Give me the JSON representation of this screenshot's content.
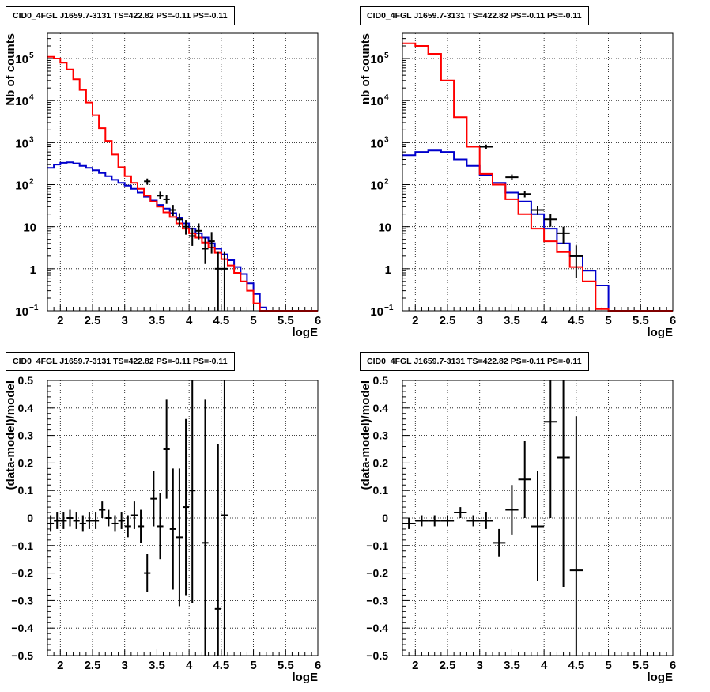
{
  "chart_data": [
    {
      "type": "step-line-with-errorbars",
      "title": "CID0_4FGL J1659.7-3131 TS=422.82 PS=-0.11 PS=-0.11",
      "xlabel": "logE",
      "ylabel": "Nb of counts",
      "xlim": [
        1.8,
        6
      ],
      "ylim": [
        0.1,
        400000
      ],
      "yscale": "log",
      "grid": true,
      "xticks": [
        "2",
        "2.5",
        "3",
        "3.5",
        "4",
        "4.5",
        "5",
        "5.5",
        "6"
      ],
      "yticks": [
        {
          "value": 0.1,
          "base": "10",
          "exp": "−1"
        },
        {
          "value": 1,
          "base": "1",
          "exp": ""
        },
        {
          "value": 10,
          "base": "10",
          "exp": ""
        },
        {
          "value": 100,
          "base": "10",
          "exp": "2"
        },
        {
          "value": 1000,
          "base": "10",
          "exp": "3"
        },
        {
          "value": 10000,
          "base": "10",
          "exp": "4"
        },
        {
          "value": 100000,
          "base": "10",
          "exp": "5"
        }
      ],
      "bin_width": 0.1,
      "bin_start": 1.8,
      "series": [
        {
          "color": "#0000cc",
          "values": [
            250,
            300,
            330,
            340,
            320,
            280,
            250,
            220,
            190,
            160,
            130,
            110,
            95,
            80,
            65,
            52,
            42,
            33,
            27,
            21,
            16,
            12,
            9,
            7,
            5.5,
            4,
            3,
            2.2,
            1.6,
            1.1,
            0.75,
            0.45,
            0.25,
            0.12,
            0.1,
            0.1,
            0.1,
            0.1,
            0.1,
            0.1,
            0.1,
            0.1
          ]
        },
        {
          "color": "#ff0000",
          "values": [
            110000,
            100000,
            80000,
            55000,
            32000,
            18000,
            9000,
            4500,
            2200,
            1100,
            520,
            260,
            160,
            110,
            80,
            55,
            40,
            30,
            22,
            17,
            12,
            9,
            7,
            5.5,
            4.2,
            3.2,
            2.4,
            1.7,
            1.2,
            0.8,
            0.5,
            0.3,
            0.15,
            0.1,
            0.1,
            0.1,
            0.1,
            0.1,
            0.1,
            0.1,
            0.1,
            0.1
          ]
        }
      ],
      "points": [
        {
          "x": 3.35,
          "y": 120,
          "lo": 100,
          "hi": 140
        },
        {
          "x": 3.55,
          "y": 55,
          "lo": 45,
          "hi": 68
        },
        {
          "x": 3.65,
          "y": 45,
          "lo": 35,
          "hi": 57
        },
        {
          "x": 3.75,
          "y": 25,
          "lo": 18,
          "hi": 33
        },
        {
          "x": 3.85,
          "y": 15,
          "lo": 10,
          "hi": 21
        },
        {
          "x": 3.95,
          "y": 10,
          "lo": 6.5,
          "hi": 14.5
        },
        {
          "x": 4.05,
          "y": 6,
          "lo": 3.5,
          "hi": 9.5
        },
        {
          "x": 4.15,
          "y": 8,
          "lo": 5,
          "hi": 12
        },
        {
          "x": 4.25,
          "y": 3,
          "lo": 1.3,
          "hi": 5.5
        },
        {
          "x": 4.35,
          "y": 4.5,
          "lo": 2.3,
          "hi": 7.5
        },
        {
          "x": 4.45,
          "y": 1,
          "lo": 0.1,
          "hi": 2.5
        },
        {
          "x": 4.55,
          "y": 1,
          "lo": 0.1,
          "hi": 2.5
        }
      ]
    },
    {
      "type": "step-line-with-errorbars",
      "title": "CID0_4FGL J1659.7-3131 TS=422.82 PS=-0.11 PS=-0.11",
      "xlabel": "logE",
      "ylabel": "nb of counts",
      "xlim": [
        1.8,
        6
      ],
      "ylim": [
        0.1,
        400000
      ],
      "yscale": "log",
      "grid": true,
      "xticks": [
        "2",
        "2.5",
        "3",
        "3.5",
        "4",
        "4.5",
        "5",
        "5.5",
        "6"
      ],
      "yticks": [
        {
          "value": 0.1,
          "base": "10",
          "exp": "−1"
        },
        {
          "value": 1,
          "base": "1",
          "exp": ""
        },
        {
          "value": 10,
          "base": "10",
          "exp": ""
        },
        {
          "value": 100,
          "base": "10",
          "exp": "2"
        },
        {
          "value": 1000,
          "base": "10",
          "exp": "3"
        },
        {
          "value": 10000,
          "base": "10",
          "exp": "4"
        },
        {
          "value": 100000,
          "base": "10",
          "exp": "5"
        }
      ],
      "bin_width": 0.2,
      "bin_start": 1.8,
      "series": [
        {
          "color": "#0000cc",
          "values": [
            500,
            600,
            650,
            600,
            400,
            280,
            170,
            110,
            65,
            40,
            20,
            9,
            4,
            2,
            0.9,
            0.4,
            0.1,
            0.1,
            0.1,
            0.1,
            0.1
          ]
        },
        {
          "color": "#ff0000",
          "values": [
            230000,
            200000,
            130000,
            30000,
            4000,
            800,
            180,
            100,
            45,
            20,
            9,
            4.5,
            2.5,
            1.1,
            0.5,
            0.11,
            0.1,
            0.1,
            0.1,
            0.1,
            0.1
          ]
        }
      ],
      "points": [
        {
          "x": 3.1,
          "y": 800,
          "lo": 700,
          "hi": 900
        },
        {
          "x": 3.5,
          "y": 150,
          "lo": 130,
          "hi": 175
        },
        {
          "x": 3.7,
          "y": 60,
          "lo": 50,
          "hi": 72
        },
        {
          "x": 3.9,
          "y": 25,
          "lo": 19,
          "hi": 31
        },
        {
          "x": 4.1,
          "y": 15,
          "lo": 10,
          "hi": 20
        },
        {
          "x": 4.3,
          "y": 7,
          "lo": 4,
          "hi": 10
        },
        {
          "x": 4.5,
          "y": 2,
          "lo": 0.6,
          "hi": 3.6
        }
      ]
    },
    {
      "type": "scatter-errorbars",
      "title": "CID0_4FGL J1659.7-3131 TS=422.82 PS=-0.11 PS=-0.11",
      "xlabel": "logE",
      "ylabel": "(data-model)/model",
      "xlim": [
        1.8,
        6
      ],
      "ylim": [
        -0.5,
        0.5
      ],
      "yscale": "linear",
      "grid": true,
      "xticks": [
        "2",
        "2.5",
        "3",
        "3.5",
        "4",
        "4.5",
        "5",
        "5.5",
        "6"
      ],
      "yticks": [
        "−0.5",
        "−0.4",
        "−0.3",
        "−0.2",
        "−0.1",
        "0",
        "0.1",
        "0.2",
        "0.3",
        "0.4",
        "0.5"
      ],
      "ytick_values": [
        -0.5,
        -0.4,
        -0.3,
        -0.2,
        -0.1,
        0,
        0.1,
        0.2,
        0.3,
        0.4,
        0.5
      ],
      "half_width": 0.05,
      "points": [
        {
          "x": 1.85,
          "y": -0.02,
          "err": 0.03
        },
        {
          "x": 1.95,
          "y": -0.01,
          "err": 0.03
        },
        {
          "x": 2.05,
          "y": -0.01,
          "err": 0.03
        },
        {
          "x": 2.15,
          "y": 0.0,
          "err": 0.03
        },
        {
          "x": 2.25,
          "y": -0.01,
          "err": 0.03
        },
        {
          "x": 2.35,
          "y": -0.02,
          "err": 0.03
        },
        {
          "x": 2.45,
          "y": -0.01,
          "err": 0.03
        },
        {
          "x": 2.55,
          "y": -0.01,
          "err": 0.03
        },
        {
          "x": 2.65,
          "y": 0.03,
          "err": 0.03
        },
        {
          "x": 2.75,
          "y": 0.0,
          "err": 0.03
        },
        {
          "x": 2.85,
          "y": -0.02,
          "err": 0.03
        },
        {
          "x": 2.95,
          "y": -0.01,
          "err": 0.03
        },
        {
          "x": 3.05,
          "y": -0.03,
          "err": 0.04
        },
        {
          "x": 3.15,
          "y": 0.01,
          "err": 0.05
        },
        {
          "x": 3.25,
          "y": -0.03,
          "err": 0.06
        },
        {
          "x": 3.35,
          "y": -0.2,
          "err": 0.07
        },
        {
          "x": 3.45,
          "y": 0.07,
          "err": 0.1
        },
        {
          "x": 3.55,
          "y": -0.03,
          "err": 0.12
        },
        {
          "x": 3.65,
          "y": 0.25,
          "err": 0.18
        },
        {
          "x": 3.75,
          "y": -0.04,
          "err": 0.22
        },
        {
          "x": 3.85,
          "y": -0.07,
          "err": 0.25
        },
        {
          "x": 3.95,
          "y": 0.04,
          "err": 0.32
        },
        {
          "x": 4.05,
          "y": 0.1,
          "err": 0.41
        },
        {
          "x": 4.25,
          "y": -0.09,
          "err": 0.52
        },
        {
          "x": 4.45,
          "y": -0.33,
          "err": 0.6
        },
        {
          "x": 4.55,
          "y": 0.01,
          "err": 0.6
        }
      ]
    },
    {
      "type": "scatter-errorbars",
      "title": "CID0_4FGL J1659.7-3131 TS=422.82 PS=-0.11 PS=-0.11",
      "xlabel": "logE",
      "ylabel": "(data-model)/model",
      "xlim": [
        1.8,
        6
      ],
      "ylim": [
        -0.5,
        0.5
      ],
      "yscale": "linear",
      "grid": true,
      "xticks": [
        "2",
        "2.5",
        "3",
        "3.5",
        "4",
        "4.5",
        "5",
        "5.5",
        "6"
      ],
      "yticks": [
        "−0.5",
        "−0.4",
        "−0.3",
        "−0.2",
        "−0.1",
        "0",
        "0.1",
        "0.2",
        "0.3",
        "0.4",
        "0.5"
      ],
      "ytick_values": [
        -0.5,
        -0.4,
        -0.3,
        -0.2,
        -0.1,
        0,
        0.1,
        0.2,
        0.3,
        0.4,
        0.5
      ],
      "half_width": 0.1,
      "points": [
        {
          "x": 1.9,
          "y": -0.02,
          "err": 0.02
        },
        {
          "x": 2.1,
          "y": -0.01,
          "err": 0.02
        },
        {
          "x": 2.3,
          "y": -0.01,
          "err": 0.02
        },
        {
          "x": 2.5,
          "y": -0.01,
          "err": 0.02
        },
        {
          "x": 2.7,
          "y": 0.02,
          "err": 0.02
        },
        {
          "x": 2.9,
          "y": -0.01,
          "err": 0.02
        },
        {
          "x": 3.1,
          "y": -0.01,
          "err": 0.03
        },
        {
          "x": 3.3,
          "y": -0.09,
          "err": 0.05
        },
        {
          "x": 3.5,
          "y": 0.03,
          "err": 0.09
        },
        {
          "x": 3.7,
          "y": 0.14,
          "err": 0.14
        },
        {
          "x": 3.9,
          "y": -0.03,
          "err": 0.2
        },
        {
          "x": 4.1,
          "y": 0.35,
          "err": 0.35
        },
        {
          "x": 4.3,
          "y": 0.22,
          "err": 0.47
        },
        {
          "x": 4.5,
          "y": -0.19,
          "err": 0.56
        }
      ]
    }
  ]
}
